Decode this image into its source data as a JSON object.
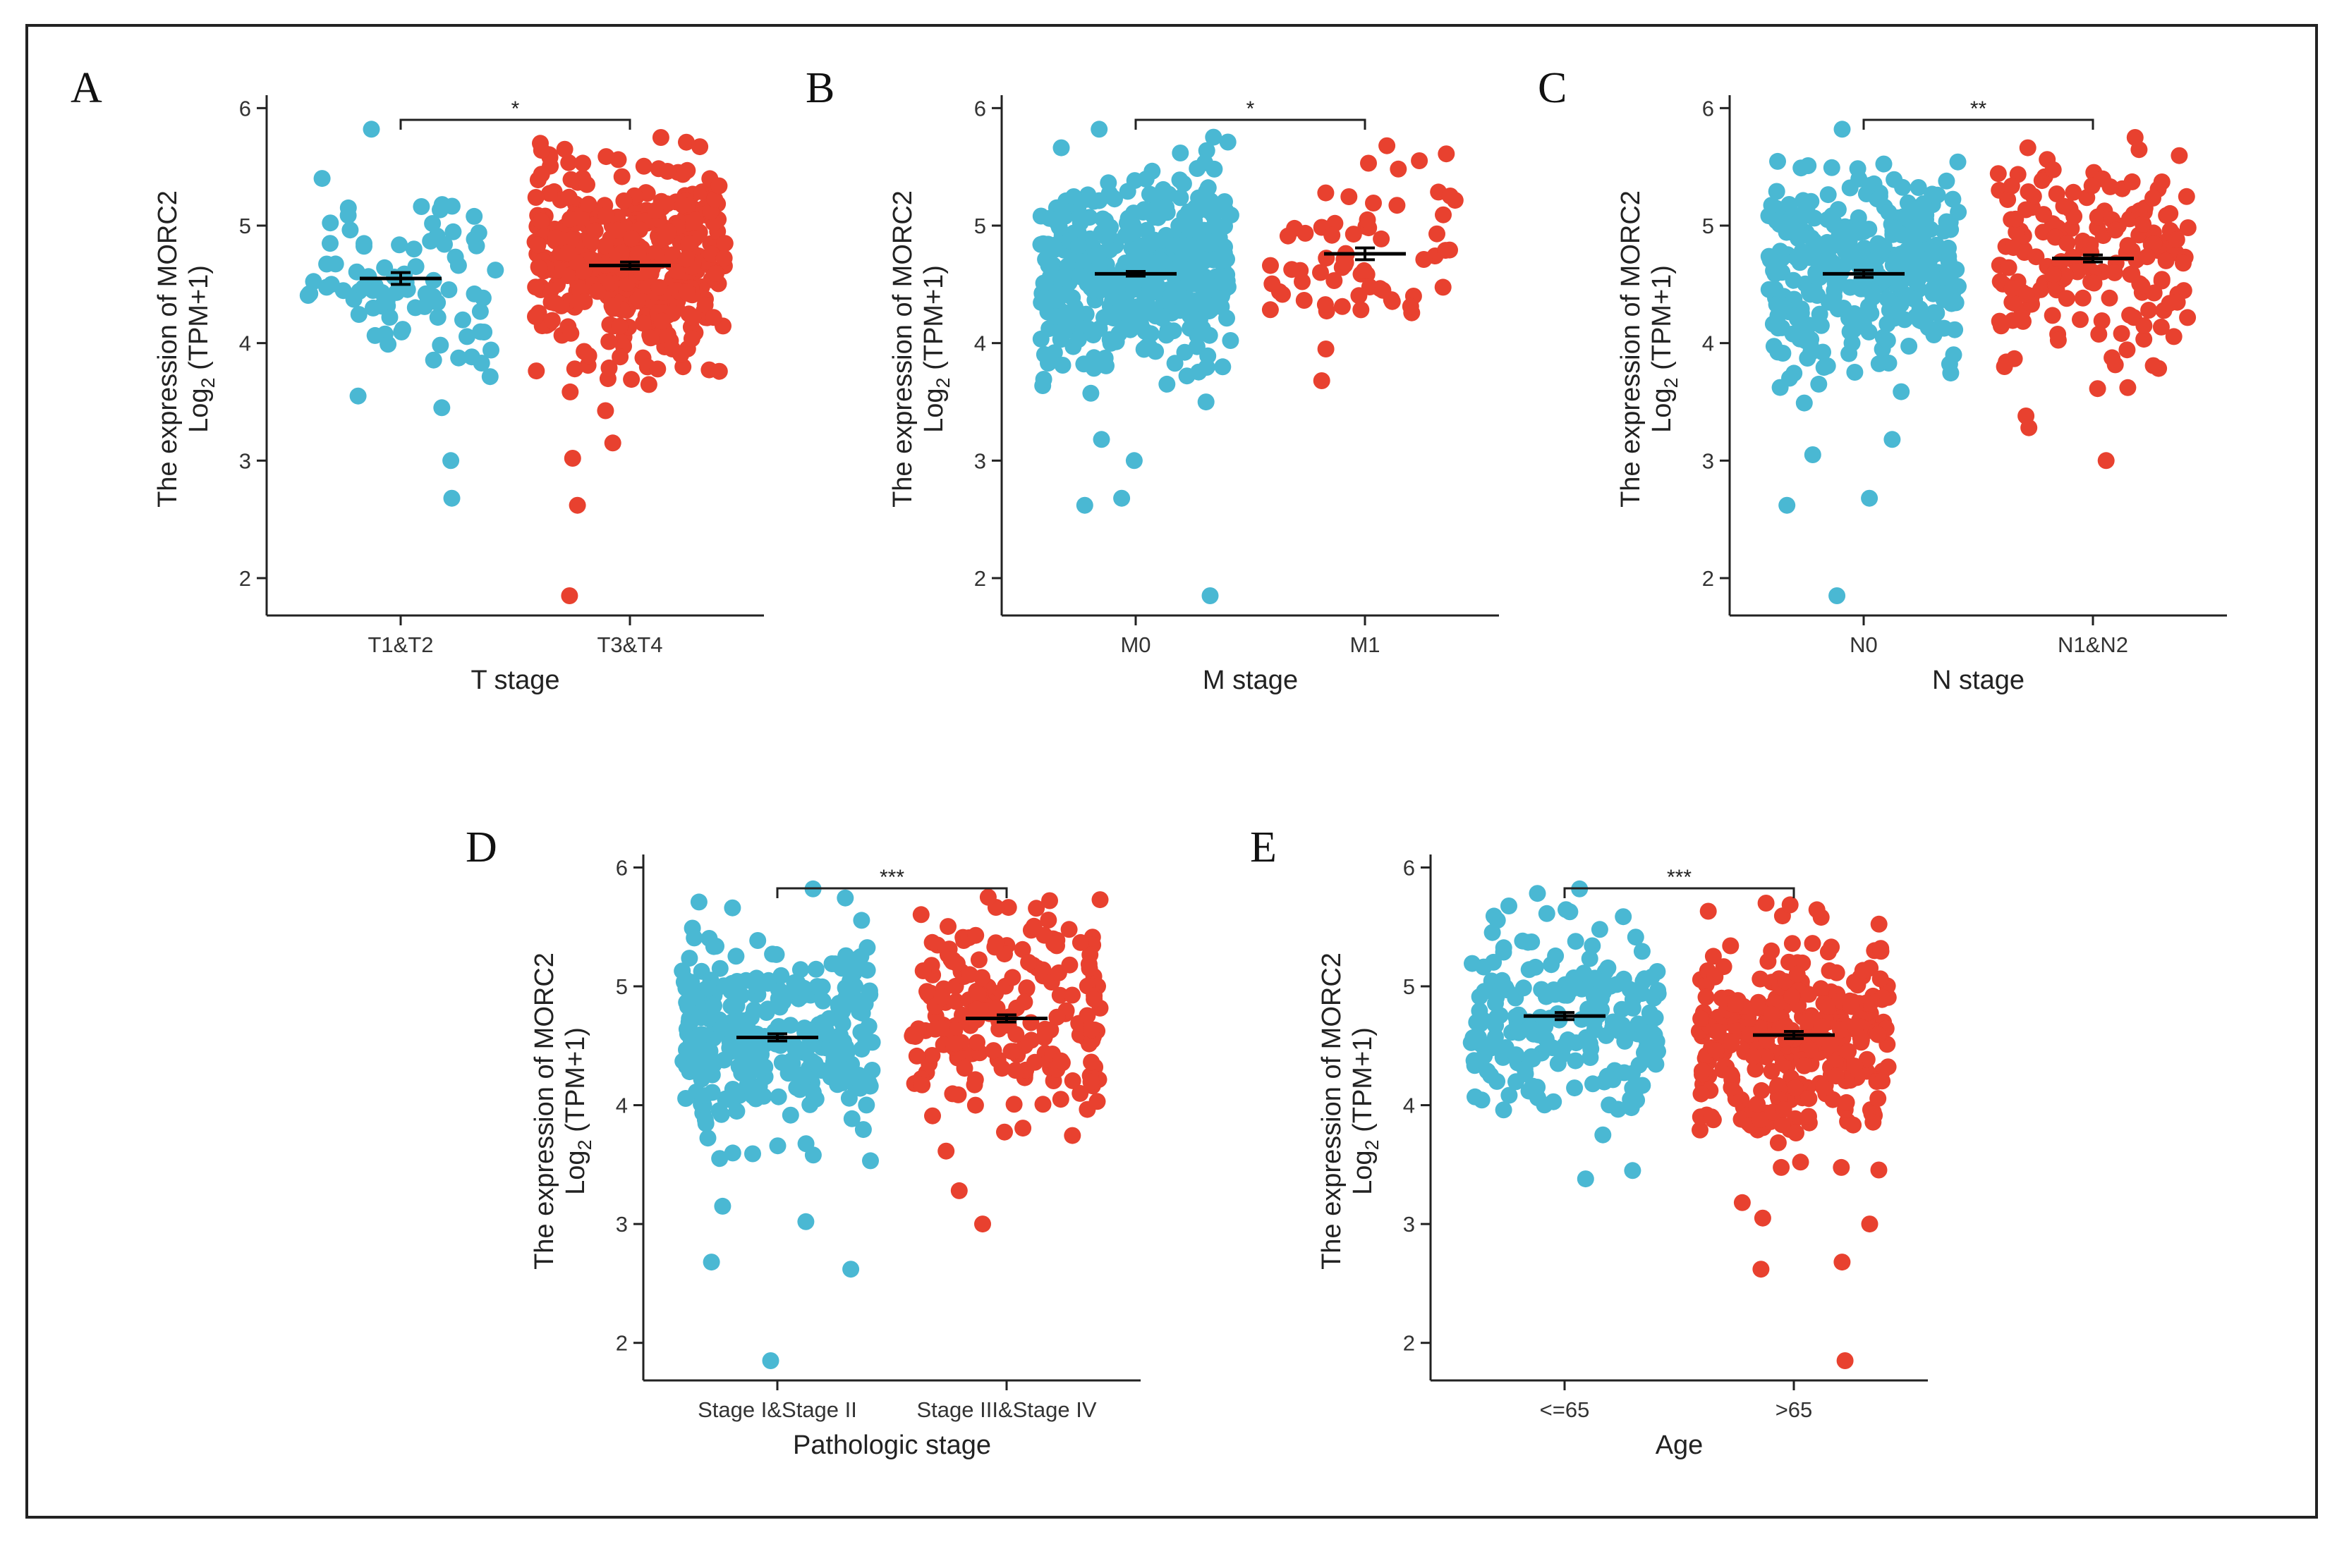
{
  "figure": {
    "colors": {
      "group1": "#4ab8d3",
      "group2": "#e8412f",
      "axis": "#222222",
      "mean": "#000000"
    },
    "shared_ylabel": {
      "line1": "The expression of MORC2",
      "line2_prefix": "Log",
      "line2_sub": "2",
      "line2_suffix": " (TPM+1)"
    }
  },
  "chart_data": [
    {
      "panel": "A",
      "type": "scatter",
      "xlabel": "T stage",
      "ylabel": "The expression of MORC2 Log2 (TPM+1)",
      "ylim": [
        1.85,
        6.05
      ],
      "yticks": [
        2,
        3,
        4,
        5,
        6
      ],
      "categories": [
        "T1&T2",
        "T3&T4"
      ],
      "groups": [
        {
          "name": "T1&T2",
          "n": 90,
          "mean": 4.55,
          "sem": 0.05,
          "min": 2.68,
          "max": 5.82,
          "outliers": [
            2.68,
            3.0,
            3.45,
            3.55
          ]
        },
        {
          "name": "T3&T4",
          "n": 420,
          "mean": 4.66,
          "sem": 0.03,
          "min": 1.85,
          "max": 5.75,
          "outliers": [
            1.85,
            2.62,
            3.02,
            3.15
          ]
        }
      ],
      "significance": "*"
    },
    {
      "panel": "B",
      "type": "scatter",
      "xlabel": "M stage",
      "ylabel": "The expression of MORC2 Log2 (TPM+1)",
      "ylim": [
        1.85,
        6.05
      ],
      "yticks": [
        2,
        3,
        4,
        5,
        6
      ],
      "categories": [
        "M0",
        "M1"
      ],
      "groups": [
        {
          "name": "M0",
          "n": 440,
          "mean": 4.59,
          "sem": 0.02,
          "min": 1.85,
          "max": 5.82,
          "outliers": [
            1.85,
            2.62,
            2.68,
            3.0,
            3.18
          ]
        },
        {
          "name": "M1",
          "n": 65,
          "mean": 4.76,
          "sem": 0.05,
          "min": 3.68,
          "max": 5.68,
          "outliers": [
            3.68,
            3.95
          ]
        }
      ],
      "significance": "*"
    },
    {
      "panel": "C",
      "type": "scatter",
      "xlabel": "N stage",
      "ylabel": "The expression of MORC2 Log2 (TPM+1)",
      "ylim": [
        1.85,
        6.05
      ],
      "yticks": [
        2,
        3,
        4,
        5,
        6
      ],
      "categories": [
        "N0",
        "N1&N2"
      ],
      "groups": [
        {
          "name": "N0",
          "n": 330,
          "mean": 4.59,
          "sem": 0.03,
          "min": 1.85,
          "max": 5.82,
          "outliers": [
            1.85,
            2.62,
            2.68,
            3.05,
            3.18
          ]
        },
        {
          "name": "N1&N2",
          "n": 180,
          "mean": 4.72,
          "sem": 0.03,
          "min": 3.0,
          "max": 5.75,
          "outliers": [
            3.0,
            3.28,
            3.38
          ]
        }
      ],
      "significance": "**"
    },
    {
      "panel": "D",
      "type": "scatter",
      "xlabel": "Pathologic stage",
      "ylabel": "The expression of MORC2 Log2 (TPM+1)",
      "ylim": [
        1.85,
        6.05
      ],
      "yticks": [
        2,
        3,
        4,
        5,
        6
      ],
      "categories": [
        "Stage I&Stage II",
        "Stage III&Stage IV"
      ],
      "groups": [
        {
          "name": "Stage I&Stage II",
          "n": 300,
          "mean": 4.57,
          "sem": 0.03,
          "min": 1.85,
          "max": 5.82,
          "outliers": [
            1.85,
            2.62,
            2.68,
            3.02,
            3.15
          ]
        },
        {
          "name": "Stage III&Stage IV",
          "n": 200,
          "mean": 4.73,
          "sem": 0.03,
          "min": 3.0,
          "max": 5.75,
          "outliers": [
            3.0,
            3.28
          ]
        }
      ],
      "significance": "***"
    },
    {
      "panel": "E",
      "type": "scatter",
      "xlabel": "Age",
      "ylabel": "The expression of MORC2 Log2 (TPM+1)",
      "ylim": [
        1.85,
        6.05
      ],
      "yticks": [
        2,
        3,
        4,
        5,
        6
      ],
      "categories": [
        "<=65",
        ">65"
      ],
      "groups": [
        {
          "name": "<=65",
          "n": 200,
          "mean": 4.75,
          "sem": 0.03,
          "min": 3.38,
          "max": 5.82,
          "outliers": [
            3.38,
            3.45,
            3.75
          ]
        },
        {
          "name": ">65",
          "n": 330,
          "mean": 4.59,
          "sem": 0.03,
          "min": 1.85,
          "max": 5.7,
          "outliers": [
            1.85,
            2.62,
            2.68,
            3.0,
            3.05,
            3.18
          ]
        }
      ],
      "significance": "***"
    }
  ]
}
